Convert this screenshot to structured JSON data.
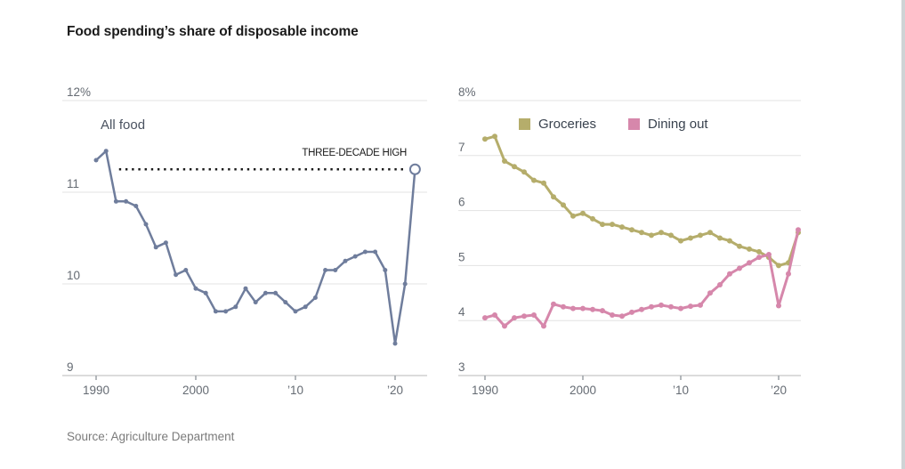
{
  "title": "Food spending’s share of disposable income",
  "source": "Source: Agriculture Department",
  "colors": {
    "background": "#ffffff",
    "gridline": "#e3e3e3",
    "axis_line": "#b9b9b9",
    "tick_mark": "#9aa0a6",
    "axis_label": "#656b73",
    "title_text": "#1a1a1a",
    "chart_label": "#4a5260",
    "annotation": "#1a1a1a",
    "source_text": "#7b7b7b",
    "all_food_line": "#6f7d9c",
    "groceries_line": "#b5ad6b",
    "dining_out_line": "#d687ab",
    "right_edge": "#cfd3d5"
  },
  "chart_data": [
    {
      "type": "line",
      "title": "All food",
      "x": [
        1990,
        1991,
        1992,
        1993,
        1994,
        1995,
        1996,
        1997,
        1998,
        1999,
        2000,
        2001,
        2002,
        2003,
        2004,
        2005,
        2006,
        2007,
        2008,
        2009,
        2010,
        2011,
        2012,
        2013,
        2014,
        2015,
        2016,
        2017,
        2018,
        2019,
        2020,
        2021,
        2022
      ],
      "series": [
        {
          "name": "All food",
          "color": "#6f7d9c",
          "values": [
            11.35,
            11.45,
            10.9,
            10.9,
            10.85,
            10.65,
            10.4,
            10.45,
            10.1,
            10.15,
            9.95,
            9.9,
            9.7,
            9.7,
            9.75,
            9.95,
            9.8,
            9.9,
            9.9,
            9.8,
            9.7,
            9.75,
            9.85,
            10.15,
            10.15,
            10.25,
            10.3,
            10.35,
            10.35,
            10.15,
            9.35,
            10.0,
            11.25
          ]
        }
      ],
      "ylim": [
        9,
        12
      ],
      "yticks": [
        {
          "value": 12,
          "label": "12%"
        },
        {
          "value": 11,
          "label": "11"
        },
        {
          "value": 10,
          "label": "10"
        },
        {
          "value": 9,
          "label": "9"
        }
      ],
      "xticks": [
        {
          "value": 1990,
          "label": "1990"
        },
        {
          "value": 2000,
          "label": "2000"
        },
        {
          "value": 2010,
          "label": "’10"
        },
        {
          "value": 2020,
          "label": "’20"
        }
      ],
      "grid": true,
      "legend_position": "none",
      "annotation": {
        "label": "THREE-DECADE HIGH",
        "value": 11.25,
        "from_x": 1992.3,
        "to_x": 2021.1,
        "marker": "open-circle",
        "marker_x": 2022,
        "color": "#1a1a1a"
      }
    },
    {
      "type": "line",
      "title": "Groceries vs Dining out",
      "x": [
        1990,
        1991,
        1992,
        1993,
        1994,
        1995,
        1996,
        1997,
        1998,
        1999,
        2000,
        2001,
        2002,
        2003,
        2004,
        2005,
        2006,
        2007,
        2008,
        2009,
        2010,
        2011,
        2012,
        2013,
        2014,
        2015,
        2016,
        2017,
        2018,
        2019,
        2020,
        2021,
        2022
      ],
      "series": [
        {
          "name": "Groceries",
          "color": "#b5ad6b",
          "values": [
            7.3,
            7.35,
            6.9,
            6.8,
            6.7,
            6.55,
            6.5,
            6.25,
            6.1,
            5.9,
            5.95,
            5.85,
            5.75,
            5.75,
            5.7,
            5.65,
            5.6,
            5.55,
            5.6,
            5.55,
            5.45,
            5.5,
            5.55,
            5.6,
            5.5,
            5.45,
            5.35,
            5.3,
            5.25,
            5.15,
            5.0,
            5.05,
            5.6
          ]
        },
        {
          "name": "Dining out",
          "color": "#d687ab",
          "values": [
            4.05,
            4.1,
            3.9,
            4.05,
            4.08,
            4.1,
            3.9,
            4.3,
            4.25,
            4.22,
            4.22,
            4.2,
            4.18,
            4.1,
            4.08,
            4.15,
            4.2,
            4.25,
            4.28,
            4.25,
            4.22,
            4.26,
            4.28,
            4.5,
            4.65,
            4.85,
            4.95,
            5.05,
            5.15,
            5.2,
            4.27,
            4.85,
            5.65
          ]
        }
      ],
      "ylim": [
        3,
        8
      ],
      "yticks": [
        {
          "value": 8,
          "label": "8%"
        },
        {
          "value": 7,
          "label": "7"
        },
        {
          "value": 6,
          "label": "6"
        },
        {
          "value": 5,
          "label": "5"
        },
        {
          "value": 4,
          "label": "4"
        },
        {
          "value": 3,
          "label": "3"
        }
      ],
      "xticks": [
        {
          "value": 1990,
          "label": "1990"
        },
        {
          "value": 2000,
          "label": "2000"
        },
        {
          "value": 2010,
          "label": "’10"
        },
        {
          "value": 2020,
          "label": "’20"
        }
      ],
      "grid": true,
      "legend_position": "top"
    }
  ]
}
